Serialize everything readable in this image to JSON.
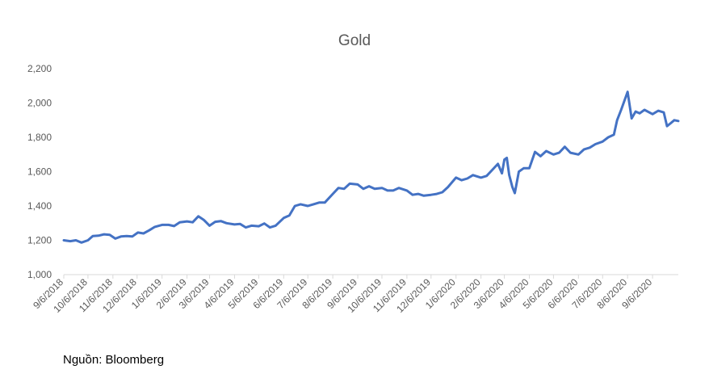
{
  "chart_data": {
    "type": "line",
    "title": "Gold",
    "xlabel": "",
    "ylabel": "",
    "ylim": [
      1000,
      2200
    ],
    "y_ticks": [
      "1,000",
      "1,200",
      "1,400",
      "1,600",
      "1,800",
      "2,000",
      "2,200"
    ],
    "x_ticks": [
      "9/6/2018",
      "10/6/2018",
      "11/6/2018",
      "12/6/2018",
      "1/6/2019",
      "2/6/2019",
      "3/6/2019",
      "4/6/2019",
      "5/6/2019",
      "6/6/2019",
      "7/6/2019",
      "8/6/2019",
      "9/6/2019",
      "10/6/2019",
      "11/6/2019",
      "12/6/2019",
      "1/6/2020",
      "2/6/2020",
      "3/6/2020",
      "4/6/2020",
      "5/6/2020",
      "6/6/2020",
      "7/6/2020",
      "8/6/2020",
      "9/6/2020"
    ],
    "grid": false,
    "legend": "none",
    "series": [
      {
        "color": "#4472C4",
        "points": [
          [
            "2018-09-06",
            1200
          ],
          [
            "2018-09-14",
            1195
          ],
          [
            "2018-09-21",
            1200
          ],
          [
            "2018-09-28",
            1187
          ],
          [
            "2018-10-06",
            1200
          ],
          [
            "2018-10-12",
            1225
          ],
          [
            "2018-10-19",
            1227
          ],
          [
            "2018-10-26",
            1235
          ],
          [
            "2018-11-02",
            1232
          ],
          [
            "2018-11-09",
            1210
          ],
          [
            "2018-11-16",
            1222
          ],
          [
            "2018-11-23",
            1225
          ],
          [
            "2018-11-30",
            1222
          ],
          [
            "2018-12-07",
            1245
          ],
          [
            "2018-12-14",
            1240
          ],
          [
            "2018-12-21",
            1258
          ],
          [
            "2018-12-28",
            1278
          ],
          [
            "2019-01-06",
            1290
          ],
          [
            "2019-01-14",
            1290
          ],
          [
            "2019-01-21",
            1283
          ],
          [
            "2019-01-28",
            1305
          ],
          [
            "2019-02-06",
            1310
          ],
          [
            "2019-02-13",
            1305
          ],
          [
            "2019-02-20",
            1340
          ],
          [
            "2019-02-27",
            1318
          ],
          [
            "2019-03-06",
            1285
          ],
          [
            "2019-03-13",
            1308
          ],
          [
            "2019-03-20",
            1312
          ],
          [
            "2019-03-27",
            1300
          ],
          [
            "2019-04-06",
            1292
          ],
          [
            "2019-04-13",
            1295
          ],
          [
            "2019-04-20",
            1275
          ],
          [
            "2019-04-27",
            1285
          ],
          [
            "2019-05-06",
            1282
          ],
          [
            "2019-05-13",
            1298
          ],
          [
            "2019-05-20",
            1275
          ],
          [
            "2019-05-27",
            1285
          ],
          [
            "2019-06-06",
            1330
          ],
          [
            "2019-06-13",
            1345
          ],
          [
            "2019-06-20",
            1400
          ],
          [
            "2019-06-27",
            1410
          ],
          [
            "2019-07-06",
            1400
          ],
          [
            "2019-07-13",
            1410
          ],
          [
            "2019-07-20",
            1420
          ],
          [
            "2019-07-27",
            1420
          ],
          [
            "2019-08-06",
            1470
          ],
          [
            "2019-08-13",
            1505
          ],
          [
            "2019-08-20",
            1500
          ],
          [
            "2019-08-27",
            1530
          ],
          [
            "2019-09-06",
            1525
          ],
          [
            "2019-09-13",
            1500
          ],
          [
            "2019-09-20",
            1515
          ],
          [
            "2019-09-27",
            1500
          ],
          [
            "2019-10-06",
            1505
          ],
          [
            "2019-10-13",
            1490
          ],
          [
            "2019-10-20",
            1490
          ],
          [
            "2019-10-27",
            1505
          ],
          [
            "2019-11-06",
            1490
          ],
          [
            "2019-11-13",
            1465
          ],
          [
            "2019-11-20",
            1470
          ],
          [
            "2019-11-27",
            1460
          ],
          [
            "2019-12-06",
            1465
          ],
          [
            "2019-12-13",
            1470
          ],
          [
            "2019-12-20",
            1480
          ],
          [
            "2019-12-27",
            1510
          ],
          [
            "2020-01-06",
            1565
          ],
          [
            "2020-01-13",
            1550
          ],
          [
            "2020-01-20",
            1560
          ],
          [
            "2020-01-27",
            1580
          ],
          [
            "2020-02-06",
            1565
          ],
          [
            "2020-02-13",
            1575
          ],
          [
            "2020-02-20",
            1610
          ],
          [
            "2020-02-27",
            1645
          ],
          [
            "2020-03-03",
            1590
          ],
          [
            "2020-03-06",
            1670
          ],
          [
            "2020-03-09",
            1680
          ],
          [
            "2020-03-12",
            1580
          ],
          [
            "2020-03-16",
            1510
          ],
          [
            "2020-03-19",
            1475
          ],
          [
            "2020-03-24",
            1600
          ],
          [
            "2020-03-30",
            1620
          ],
          [
            "2020-04-06",
            1620
          ],
          [
            "2020-04-13",
            1715
          ],
          [
            "2020-04-20",
            1690
          ],
          [
            "2020-04-27",
            1720
          ],
          [
            "2020-05-06",
            1700
          ],
          [
            "2020-05-13",
            1710
          ],
          [
            "2020-05-20",
            1745
          ],
          [
            "2020-05-27",
            1710
          ],
          [
            "2020-06-06",
            1700
          ],
          [
            "2020-06-13",
            1730
          ],
          [
            "2020-06-20",
            1740
          ],
          [
            "2020-06-27",
            1760
          ],
          [
            "2020-07-06",
            1775
          ],
          [
            "2020-07-13",
            1800
          ],
          [
            "2020-07-20",
            1815
          ],
          [
            "2020-07-24",
            1900
          ],
          [
            "2020-07-29",
            1960
          ],
          [
            "2020-08-06",
            2065
          ],
          [
            "2020-08-11",
            1910
          ],
          [
            "2020-08-16",
            1950
          ],
          [
            "2020-08-21",
            1940
          ],
          [
            "2020-08-27",
            1960
          ],
          [
            "2020-09-06",
            1935
          ],
          [
            "2020-09-13",
            1955
          ],
          [
            "2020-09-20",
            1945
          ],
          [
            "2020-09-24",
            1865
          ],
          [
            "2020-09-28",
            1880
          ],
          [
            "2020-10-03",
            1900
          ],
          [
            "2020-10-08",
            1895
          ]
        ]
      }
    ]
  },
  "source": "Nguồn: Bloomberg"
}
